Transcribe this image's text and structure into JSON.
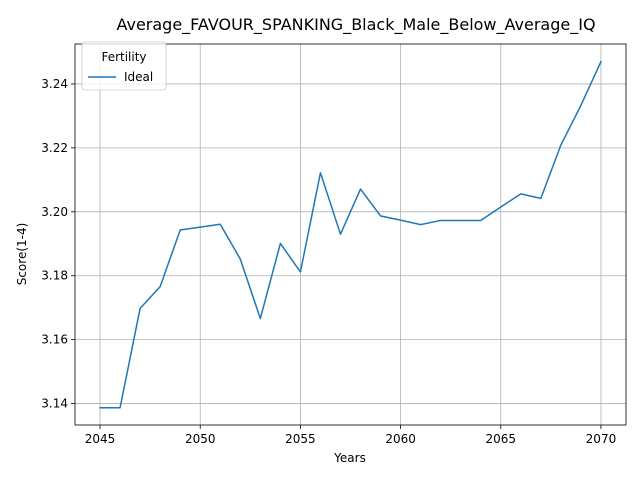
{
  "chart_data": {
    "type": "line",
    "title": "Average_FAVOUR_SPANKING_Black_Male_Below_Average_IQ",
    "xlabel": "Years",
    "ylabel": "Score(1-4)",
    "xlim": [
      2043.75,
      2071.25
    ],
    "ylim": [
      3.1333,
      3.2525
    ],
    "x_ticks": [
      2045,
      2050,
      2055,
      2060,
      2065,
      2070
    ],
    "y_ticks": [
      3.14,
      3.16,
      3.18,
      3.2,
      3.22,
      3.24
    ],
    "x_tick_labels": [
      "2045",
      "2050",
      "2055",
      "2060",
      "2065",
      "2070"
    ],
    "y_tick_labels": [
      "3.14",
      "3.16",
      "3.18",
      "3.20",
      "3.22",
      "3.24"
    ],
    "grid": true,
    "legend": {
      "title": "Fertility",
      "placement": "upper-left",
      "entries": [
        "Ideal"
      ]
    },
    "x": [
      2045,
      2046,
      2047,
      2048,
      2049,
      2050,
      2051,
      2052,
      2053,
      2054,
      2055,
      2056,
      2057,
      2058,
      2059,
      2060,
      2061,
      2062,
      2063,
      2064,
      2065,
      2066,
      2067,
      2068,
      2069,
      2070
    ],
    "series": [
      {
        "name": "Ideal",
        "color": "#1f77b4",
        "values": [
          3.1387,
          3.1387,
          3.1698,
          3.1766,
          3.1943,
          3.1952,
          3.1961,
          3.1852,
          3.1666,
          3.1901,
          3.1812,
          3.2122,
          3.193,
          3.2071,
          3.1987,
          3.1974,
          3.196,
          3.1973,
          3.1973,
          3.1973,
          3.2015,
          3.2056,
          3.2042,
          3.2209,
          3.2333,
          3.247
        ]
      }
    ]
  }
}
